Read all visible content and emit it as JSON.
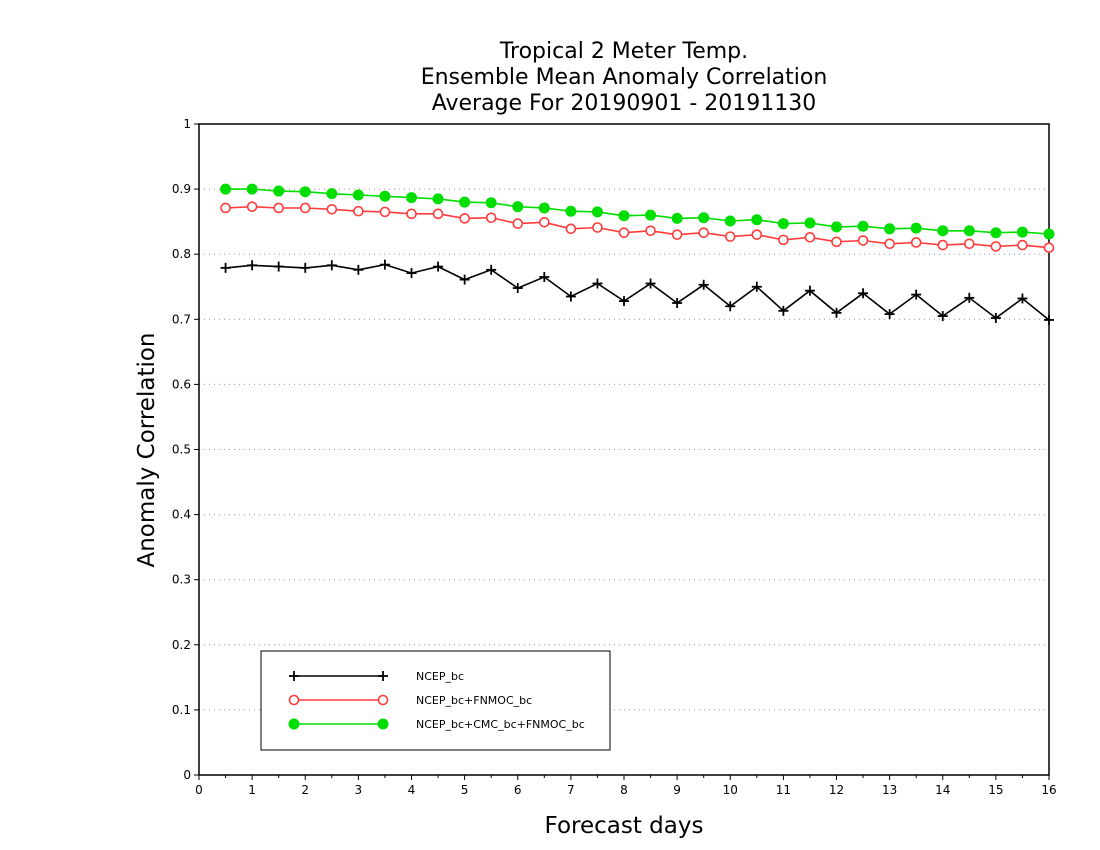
{
  "chart_data": {
    "type": "line",
    "title_lines": [
      "Tropical 2 Meter Temp.",
      "Ensemble Mean Anomaly Correlation",
      "Average For 20190901 - 20191130"
    ],
    "xlabel": "Forecast days",
    "ylabel": "Anomaly Correlation",
    "xlim": [
      0,
      16
    ],
    "ylim": [
      0,
      1
    ],
    "xticks": [
      0,
      1,
      2,
      3,
      4,
      5,
      6,
      7,
      8,
      9,
      10,
      11,
      12,
      13,
      14,
      15,
      16
    ],
    "yticks": [
      0,
      0.1,
      0.2,
      0.3,
      0.4,
      0.5,
      0.6,
      0.7,
      0.8,
      0.9,
      1
    ],
    "ytick_labels": [
      "0",
      "0.1",
      "0.2",
      "0.3",
      "0.4",
      "0.5",
      "0.6",
      "0.7",
      "0.8",
      "0.9",
      "1"
    ],
    "grid": "horizontal dotted",
    "legend_position": "bottom-left",
    "x": [
      0.5,
      1,
      1.5,
      2,
      2.5,
      3,
      3.5,
      4,
      4.5,
      5,
      5.5,
      6,
      6.5,
      7,
      7.5,
      8,
      8.5,
      9,
      9.5,
      10,
      10.5,
      11,
      11.5,
      12,
      12.5,
      13,
      13.5,
      14,
      14.5,
      15,
      15.5,
      16
    ],
    "series": [
      {
        "name": "NCEP_bc",
        "color": "#000000",
        "marker": "plus",
        "values": [
          0.779,
          0.783,
          0.781,
          0.779,
          0.783,
          0.776,
          0.784,
          0.771,
          0.781,
          0.761,
          0.776,
          0.748,
          0.765,
          0.735,
          0.755,
          0.728,
          0.755,
          0.725,
          0.753,
          0.72,
          0.75,
          0.713,
          0.744,
          0.71,
          0.74,
          0.708,
          0.738,
          0.705,
          0.733,
          0.702,
          0.732,
          0.699
        ]
      },
      {
        "name": "NCEP_bc+FNMOC_bc",
        "color": "#ff3b3b",
        "marker": "open-circle",
        "values": [
          0.871,
          0.873,
          0.871,
          0.871,
          0.869,
          0.866,
          0.865,
          0.862,
          0.862,
          0.855,
          0.856,
          0.847,
          0.849,
          0.839,
          0.841,
          0.833,
          0.836,
          0.83,
          0.833,
          0.827,
          0.83,
          0.822,
          0.826,
          0.819,
          0.821,
          0.816,
          0.818,
          0.814,
          0.816,
          0.812,
          0.814,
          0.81
        ]
      },
      {
        "name": "NCEP_bc+CMC_bc+FNMOC_bc",
        "color": "#00dd00",
        "marker": "filled-circle",
        "values": [
          0.9,
          0.9,
          0.897,
          0.896,
          0.893,
          0.891,
          0.889,
          0.887,
          0.885,
          0.88,
          0.879,
          0.873,
          0.871,
          0.866,
          0.865,
          0.859,
          0.86,
          0.855,
          0.856,
          0.851,
          0.853,
          0.847,
          0.848,
          0.842,
          0.843,
          0.839,
          0.84,
          0.836,
          0.836,
          0.833,
          0.834,
          0.831
        ]
      }
    ]
  }
}
